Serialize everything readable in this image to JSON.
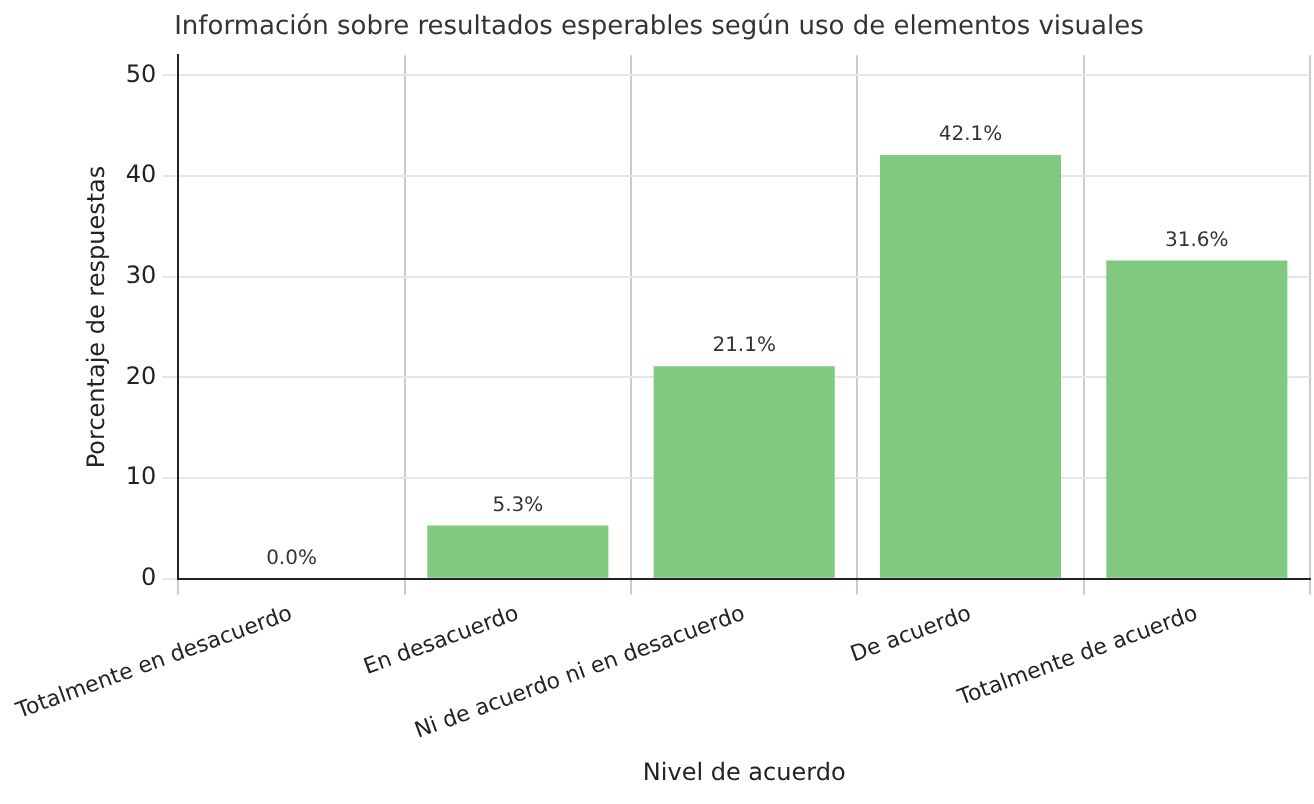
{
  "chart_data": {
    "type": "bar",
    "title": "Información sobre resultados esperables según uso de elementos visuales",
    "xlabel": "Nivel de acuerdo",
    "ylabel": "Porcentaje de respuestas",
    "categories": [
      "Totalmente en desacuerdo",
      "En desacuerdo",
      "Ni de acuerdo ni en desacuerdo",
      "De acuerdo",
      "Totalmente de acuerdo"
    ],
    "values": [
      0.0,
      5.3,
      21.1,
      42.1,
      31.6
    ],
    "value_labels": [
      "0.0%",
      "5.3%",
      "21.1%",
      "42.1%",
      "31.6%"
    ],
    "color": "#80c97f",
    "ylim": [
      0,
      52
    ],
    "yticks": [
      0,
      10,
      20,
      30,
      40,
      50
    ],
    "grid": true,
    "legend": false
  }
}
